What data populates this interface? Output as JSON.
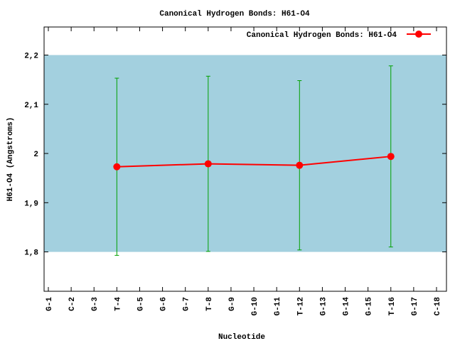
{
  "chart_data": {
    "type": "line",
    "title": "Canonical Hydrogen Bonds: H61-O4",
    "x_label": "Nucleotide",
    "y_label": "H61-O4 (Angstroms)",
    "categories": [
      "G-1",
      "C-2",
      "G-3",
      "T-4",
      "G-5",
      "G-6",
      "G-7",
      "T-8",
      "G-9",
      "G-10",
      "G-11",
      "T-12",
      "G-13",
      "G-14",
      "G-15",
      "T-16",
      "G-17",
      "C-18"
    ],
    "series": [
      {
        "name": "Canonical Hydrogen Bonds: H61-O4",
        "color": "#ff0000",
        "error_color": "#00a000",
        "values": [
          null,
          null,
          null,
          1.973,
          null,
          null,
          null,
          1.979,
          null,
          null,
          null,
          1.976,
          null,
          null,
          null,
          1.994,
          null,
          null
        ],
        "errors": [
          null,
          null,
          null,
          0.18,
          null,
          null,
          null,
          0.178,
          null,
          null,
          null,
          0.172,
          null,
          null,
          null,
          0.184,
          null,
          null
        ]
      }
    ],
    "band": [
      1.8,
      2.2
    ],
    "band_color": "#a3d0df",
    "ylim": [
      1.72,
      2.257
    ],
    "yticks": [
      {
        "value": 1.8,
        "label": "1,8"
      },
      {
        "value": 1.9,
        "label": "1,9"
      },
      2,
      {
        "value": 2.1,
        "label": "2,1"
      },
      {
        "value": 2.2,
        "label": "2,2"
      }
    ],
    "legend": "top-right"
  }
}
